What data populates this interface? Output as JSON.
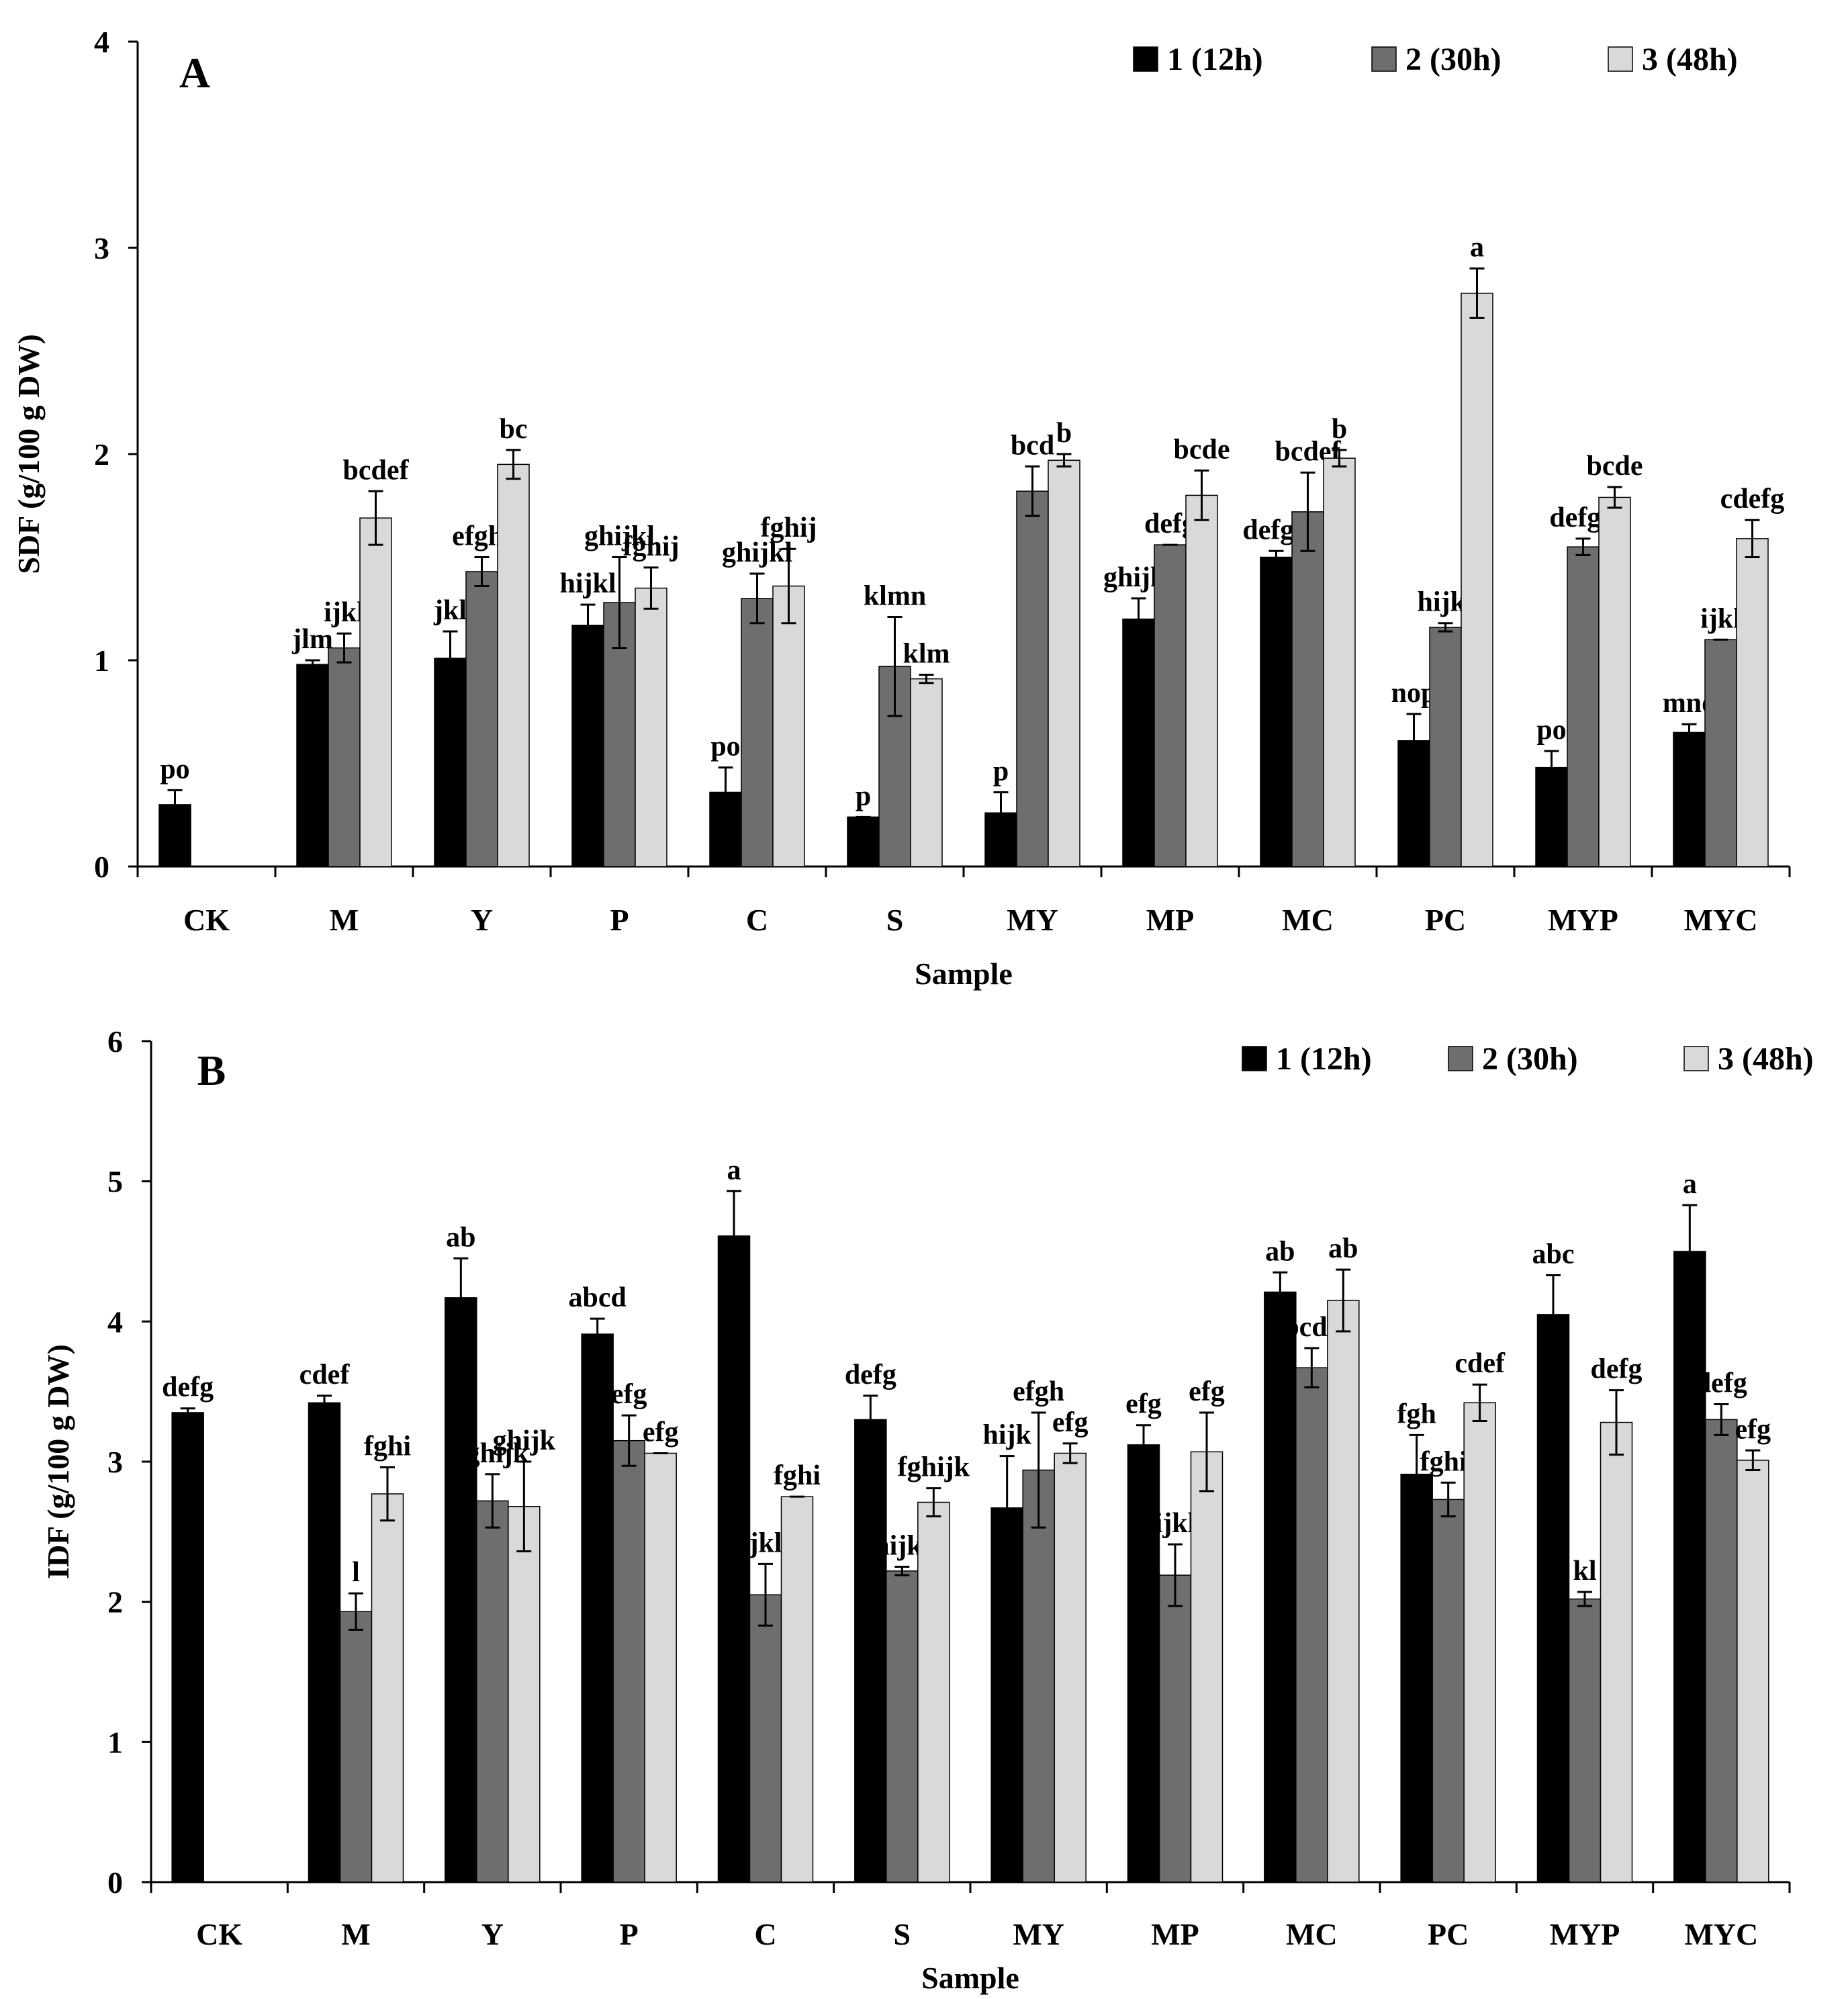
{
  "chart_data": [
    {
      "type": "bar",
      "panel": "A",
      "ylabel": "SDF (g/100 g DW)",
      "xlabel": "Sample",
      "ylim": [
        0,
        4
      ],
      "yticks": [
        0,
        1,
        2,
        3,
        4
      ],
      "categories": [
        "CK",
        "M",
        "Y",
        "P",
        "C",
        "S",
        "MY",
        "MP",
        "MC",
        "PC",
        "MYP",
        "MYC"
      ],
      "legend_position": "top-right",
      "series": [
        {
          "name": "1 (12h)",
          "color": "#000000",
          "values": [
            0.3,
            0.98,
            1.01,
            1.17,
            0.36,
            0.24,
            0.26,
            1.2,
            1.5,
            0.61,
            0.48,
            0.65
          ],
          "errors": [
            0.07,
            0.02,
            0.13,
            0.1,
            0.12,
            0.0,
            0.1,
            0.1,
            0.03,
            0.13,
            0.08,
            0.04
          ],
          "labels": [
            "po",
            "jlm",
            "jkl",
            "hijkl",
            "po",
            "p",
            "p",
            "ghijkl",
            "defgh",
            "nop",
            "po",
            "mno"
          ]
        },
        {
          "name": "2 (30h)",
          "color": "#6e6e6e",
          "values": [
            null,
            1.06,
            1.43,
            1.28,
            1.3,
            0.97,
            1.82,
            1.56,
            1.72,
            1.16,
            1.55,
            1.1
          ],
          "errors": [
            null,
            0.07,
            0.07,
            0.22,
            0.12,
            0.24,
            0.12,
            0.0,
            0.19,
            0.02,
            0.04,
            0.0
          ],
          "labels": [
            "",
            "ijkl",
            "efghi",
            "ghijkl",
            "ghijkl",
            "klmn",
            "bcd",
            "defg",
            "bcdef",
            "hijkl",
            "defgh",
            "ijkl"
          ]
        },
        {
          "name": "3 (48h)",
          "color": "#d9d9d9",
          "values": [
            null,
            1.69,
            1.95,
            1.35,
            1.36,
            0.91,
            1.97,
            1.8,
            1.98,
            2.78,
            1.79,
            1.59
          ],
          "errors": [
            null,
            0.13,
            0.07,
            0.1,
            0.18,
            0.02,
            0.03,
            0.12,
            0.04,
            0.12,
            0.05,
            0.09
          ],
          "labels": [
            "",
            "bcdef",
            "bc",
            "fghij",
            "fghij",
            "klm",
            "b",
            "bcde",
            "b",
            "a",
            "bcde",
            "cdefg"
          ]
        }
      ]
    },
    {
      "type": "bar",
      "panel": "B",
      "ylabel": "IDF (g/100 g DW)",
      "xlabel": "Sample",
      "ylim": [
        0,
        6
      ],
      "yticks": [
        0,
        1,
        2,
        3,
        4,
        5,
        6
      ],
      "categories": [
        "CK",
        "M",
        "Y",
        "P",
        "C",
        "S",
        "MY",
        "MP",
        "MC",
        "PC",
        "MYP",
        "MYC"
      ],
      "legend_position": "top-right",
      "series": [
        {
          "name": "1 (12h)",
          "color": "#000000",
          "values": [
            3.35,
            3.42,
            4.17,
            3.91,
            4.61,
            3.3,
            2.67,
            3.12,
            4.21,
            2.91,
            4.05,
            4.5
          ],
          "errors": [
            0.03,
            0.05,
            0.28,
            0.11,
            0.32,
            0.17,
            0.37,
            0.14,
            0.14,
            0.28,
            0.28,
            0.33
          ],
          "labels": [
            "defg",
            "cdef",
            "ab",
            "abcd",
            "a",
            "defg",
            "hijk",
            "efg",
            "ab",
            "fgh",
            "abc",
            "a"
          ]
        },
        {
          "name": "2 (30h)",
          "color": "#6e6e6e",
          "values": [
            null,
            1.93,
            2.72,
            3.15,
            2.05,
            2.22,
            2.94,
            2.19,
            3.67,
            2.73,
            2.02,
            3.3
          ],
          "errors": [
            null,
            0.13,
            0.19,
            0.18,
            0.22,
            0.03,
            0.41,
            0.22,
            0.14,
            0.12,
            0.05,
            0.11
          ],
          "labels": [
            "",
            "l",
            "fghijk",
            "efg",
            "jkl",
            "hijkl",
            "efgh",
            "ijkl",
            "bcde",
            "fghij",
            "kl",
            "defg"
          ]
        },
        {
          "name": "3 (48h)",
          "color": "#d9d9d9",
          "values": [
            null,
            2.77,
            2.68,
            3.06,
            2.75,
            2.71,
            3.06,
            3.07,
            4.15,
            3.42,
            3.28,
            3.01
          ],
          "errors": [
            null,
            0.19,
            0.32,
            0.0,
            0.0,
            0.1,
            0.07,
            0.28,
            0.22,
            0.13,
            0.23,
            0.07
          ],
          "labels": [
            "",
            "fghi",
            "ghijk",
            "efg",
            "fghi",
            "fghijk",
            "efg",
            "efg",
            "ab",
            "cdef",
            "defg",
            "efg"
          ]
        }
      ]
    }
  ]
}
